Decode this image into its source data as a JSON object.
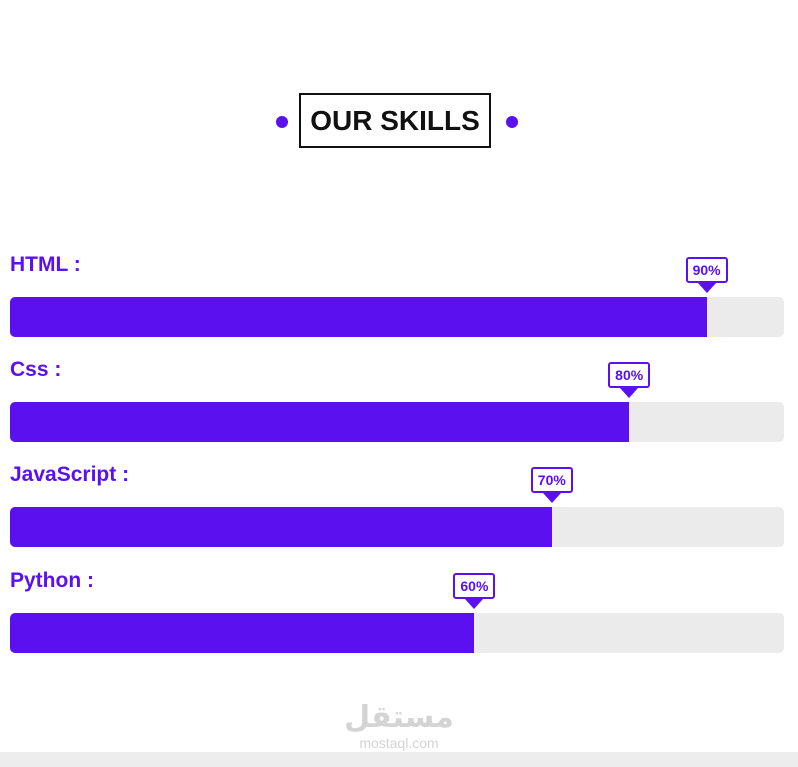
{
  "header": {
    "title": "OUR SKILLS"
  },
  "colors": {
    "accent": "#5a10ef",
    "track": "#ebebeb",
    "title_border": "#111111",
    "watermark": "#d4d4d4",
    "footer_strip": "#ededed"
  },
  "skills": [
    {
      "label": "HTML :",
      "percent": 90,
      "percent_label": "90%"
    },
    {
      "label": "Css :",
      "percent": 80,
      "percent_label": "80%"
    },
    {
      "label": "JavaScript :",
      "percent": 70,
      "percent_label": "70%"
    },
    {
      "label": "Python :",
      "percent": 60,
      "percent_label": "60%"
    }
  ],
  "watermark": {
    "brand": "مستقل",
    "domain": "mostaql.com"
  }
}
